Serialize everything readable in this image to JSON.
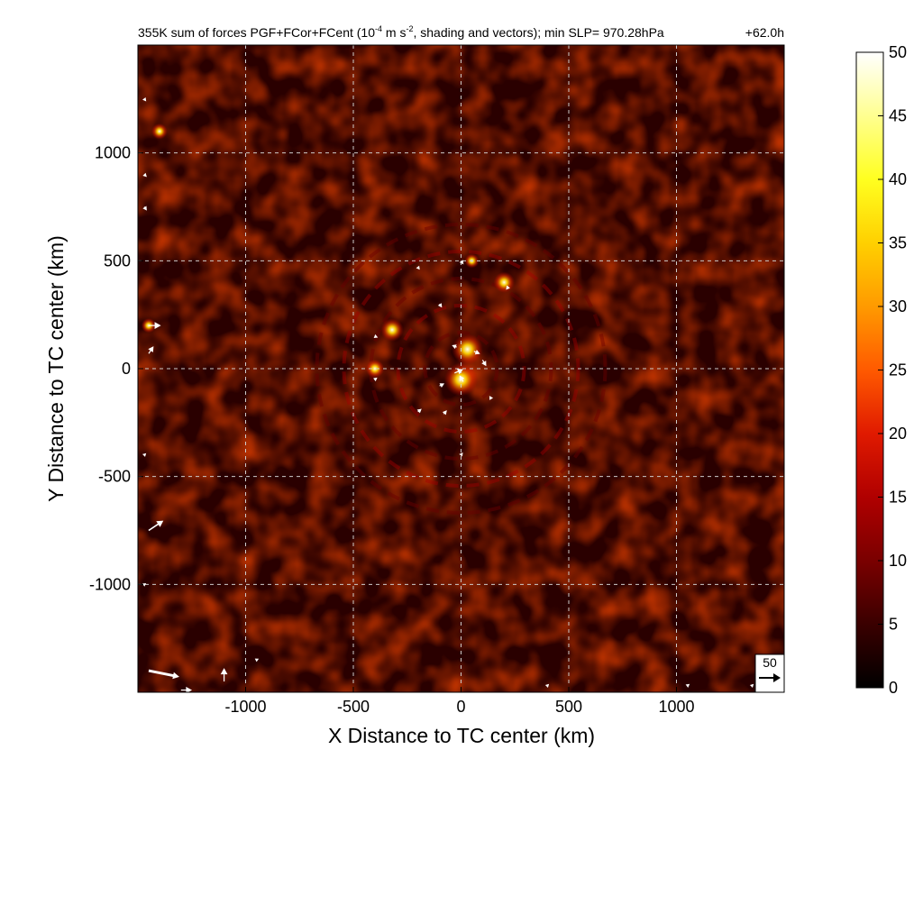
{
  "chart_data": {
    "type": "heatmap",
    "title": "355K sum of forces PGF+FCor+FCent (10",
    "title_exponent": "-4",
    "title_rest": " m s",
    "title_exponent2": "-2",
    "title_tail": ", shading and vectors); min SLP= 970.28hPa",
    "time_label": "+62.0h",
    "xlabel": "X Distance to TC center (km)",
    "ylabel": "Y Distance to TC center (km)",
    "xlim": [
      -1500,
      1500
    ],
    "ylim": [
      -1500,
      1500
    ],
    "x_ticks": [
      -1000,
      -500,
      0,
      500,
      1000
    ],
    "x_tick_labels": [
      "-1000",
      "-500",
      "0",
      "500",
      "1000"
    ],
    "y_ticks": [
      -1000,
      -500,
      0,
      500,
      1000
    ],
    "y_tick_labels": [
      "-1000",
      "-500",
      "0",
      "500",
      "1000"
    ],
    "grid": true,
    "colorbar": {
      "min": 0,
      "max": 50,
      "ticks": [
        0,
        5,
        10,
        15,
        20,
        25,
        30,
        35,
        40,
        45,
        50
      ],
      "tick_labels": [
        "0",
        "5",
        "10",
        "15",
        "20",
        "25",
        "30",
        "35",
        "40",
        "45",
        "50"
      ],
      "colors": [
        "#000000",
        "#3a0000",
        "#7a0000",
        "#b00000",
        "#e01a00",
        "#ff5a00",
        "#ff9a00",
        "#ffd000",
        "#ffff20",
        "#ffff90",
        "#ffffff"
      ]
    },
    "reference_vector": {
      "label": "50",
      "magnitude": 50
    },
    "hotspots": [
      {
        "x": 30,
        "y": 90,
        "value": 38
      },
      {
        "x": 0,
        "y": -50,
        "value": 42
      },
      {
        "x": 200,
        "y": 400,
        "value": 22
      },
      {
        "x": -320,
        "y": 180,
        "value": 25
      },
      {
        "x": -1400,
        "y": 1100,
        "value": 14
      },
      {
        "x": -1450,
        "y": 200,
        "value": 12
      },
      {
        "x": -400,
        "y": 0,
        "value": 18
      },
      {
        "x": 50,
        "y": 500,
        "value": 12
      }
    ],
    "vectors": [
      {
        "x": -20,
        "y": 100,
        "u": -8,
        "v": 3
      },
      {
        "x": 60,
        "y": 80,
        "u": 10,
        "v": -4
      },
      {
        "x": 100,
        "y": 40,
        "u": 6,
        "v": -10
      },
      {
        "x": -30,
        "y": -20,
        "u": 14,
        "v": 6
      },
      {
        "x": 10,
        "y": -60,
        "u": -6,
        "v": 10
      },
      {
        "x": -100,
        "y": -80,
        "u": 8,
        "v": 4
      },
      {
        "x": -200,
        "y": -200,
        "u": 6,
        "v": 5
      },
      {
        "x": -80,
        "y": -210,
        "u": 5,
        "v": 6
      },
      {
        "x": 140,
        "y": -140,
        "u": -3,
        "v": 5
      },
      {
        "x": -100,
        "y": 300,
        "u": 4,
        "v": -6
      },
      {
        "x": -400,
        "y": 150,
        "u": 5,
        "v": -2
      },
      {
        "x": -400,
        "y": -50,
        "u": 4,
        "v": 3
      },
      {
        "x": 0,
        "y": 500,
        "u": 4,
        "v": -6
      },
      {
        "x": -200,
        "y": 470,
        "u": 3,
        "v": -4
      },
      {
        "x": 220,
        "y": 380,
        "u": -4,
        "v": -5
      },
      {
        "x": 0,
        "y": -400,
        "u": 3,
        "v": 4
      },
      {
        "x": -1450,
        "y": 200,
        "u": 20,
        "v": 0
      },
      {
        "x": -1450,
        "y": 70,
        "u": 8,
        "v": 12
      },
      {
        "x": -1450,
        "y": -750,
        "u": 24,
        "v": 16
      },
      {
        "x": -1450,
        "y": -1400,
        "u": 50,
        "v": -10
      },
      {
        "x": -1100,
        "y": -1450,
        "u": 0,
        "v": 22
      },
      {
        "x": -1300,
        "y": -1490,
        "u": 18,
        "v": 0
      },
      {
        "x": -1470,
        "y": 1250,
        "u": 3,
        "v": -4
      },
      {
        "x": -1470,
        "y": 750,
        "u": 4,
        "v": -6
      },
      {
        "x": -1470,
        "y": 900,
        "u": 4,
        "v": -4
      },
      {
        "x": -1470,
        "y": -400,
        "u": 3,
        "v": 3
      },
      {
        "x": -1470,
        "y": -1000,
        "u": 3,
        "v": 2
      },
      {
        "x": 1050,
        "y": -1470,
        "u": 4,
        "v": 3
      },
      {
        "x": 1350,
        "y": -1470,
        "u": 3,
        "v": 3
      },
      {
        "x": -950,
        "y": -1350,
        "u": 4,
        "v": 2
      },
      {
        "x": 400,
        "y": -1470,
        "u": 3,
        "v": 3
      }
    ]
  }
}
